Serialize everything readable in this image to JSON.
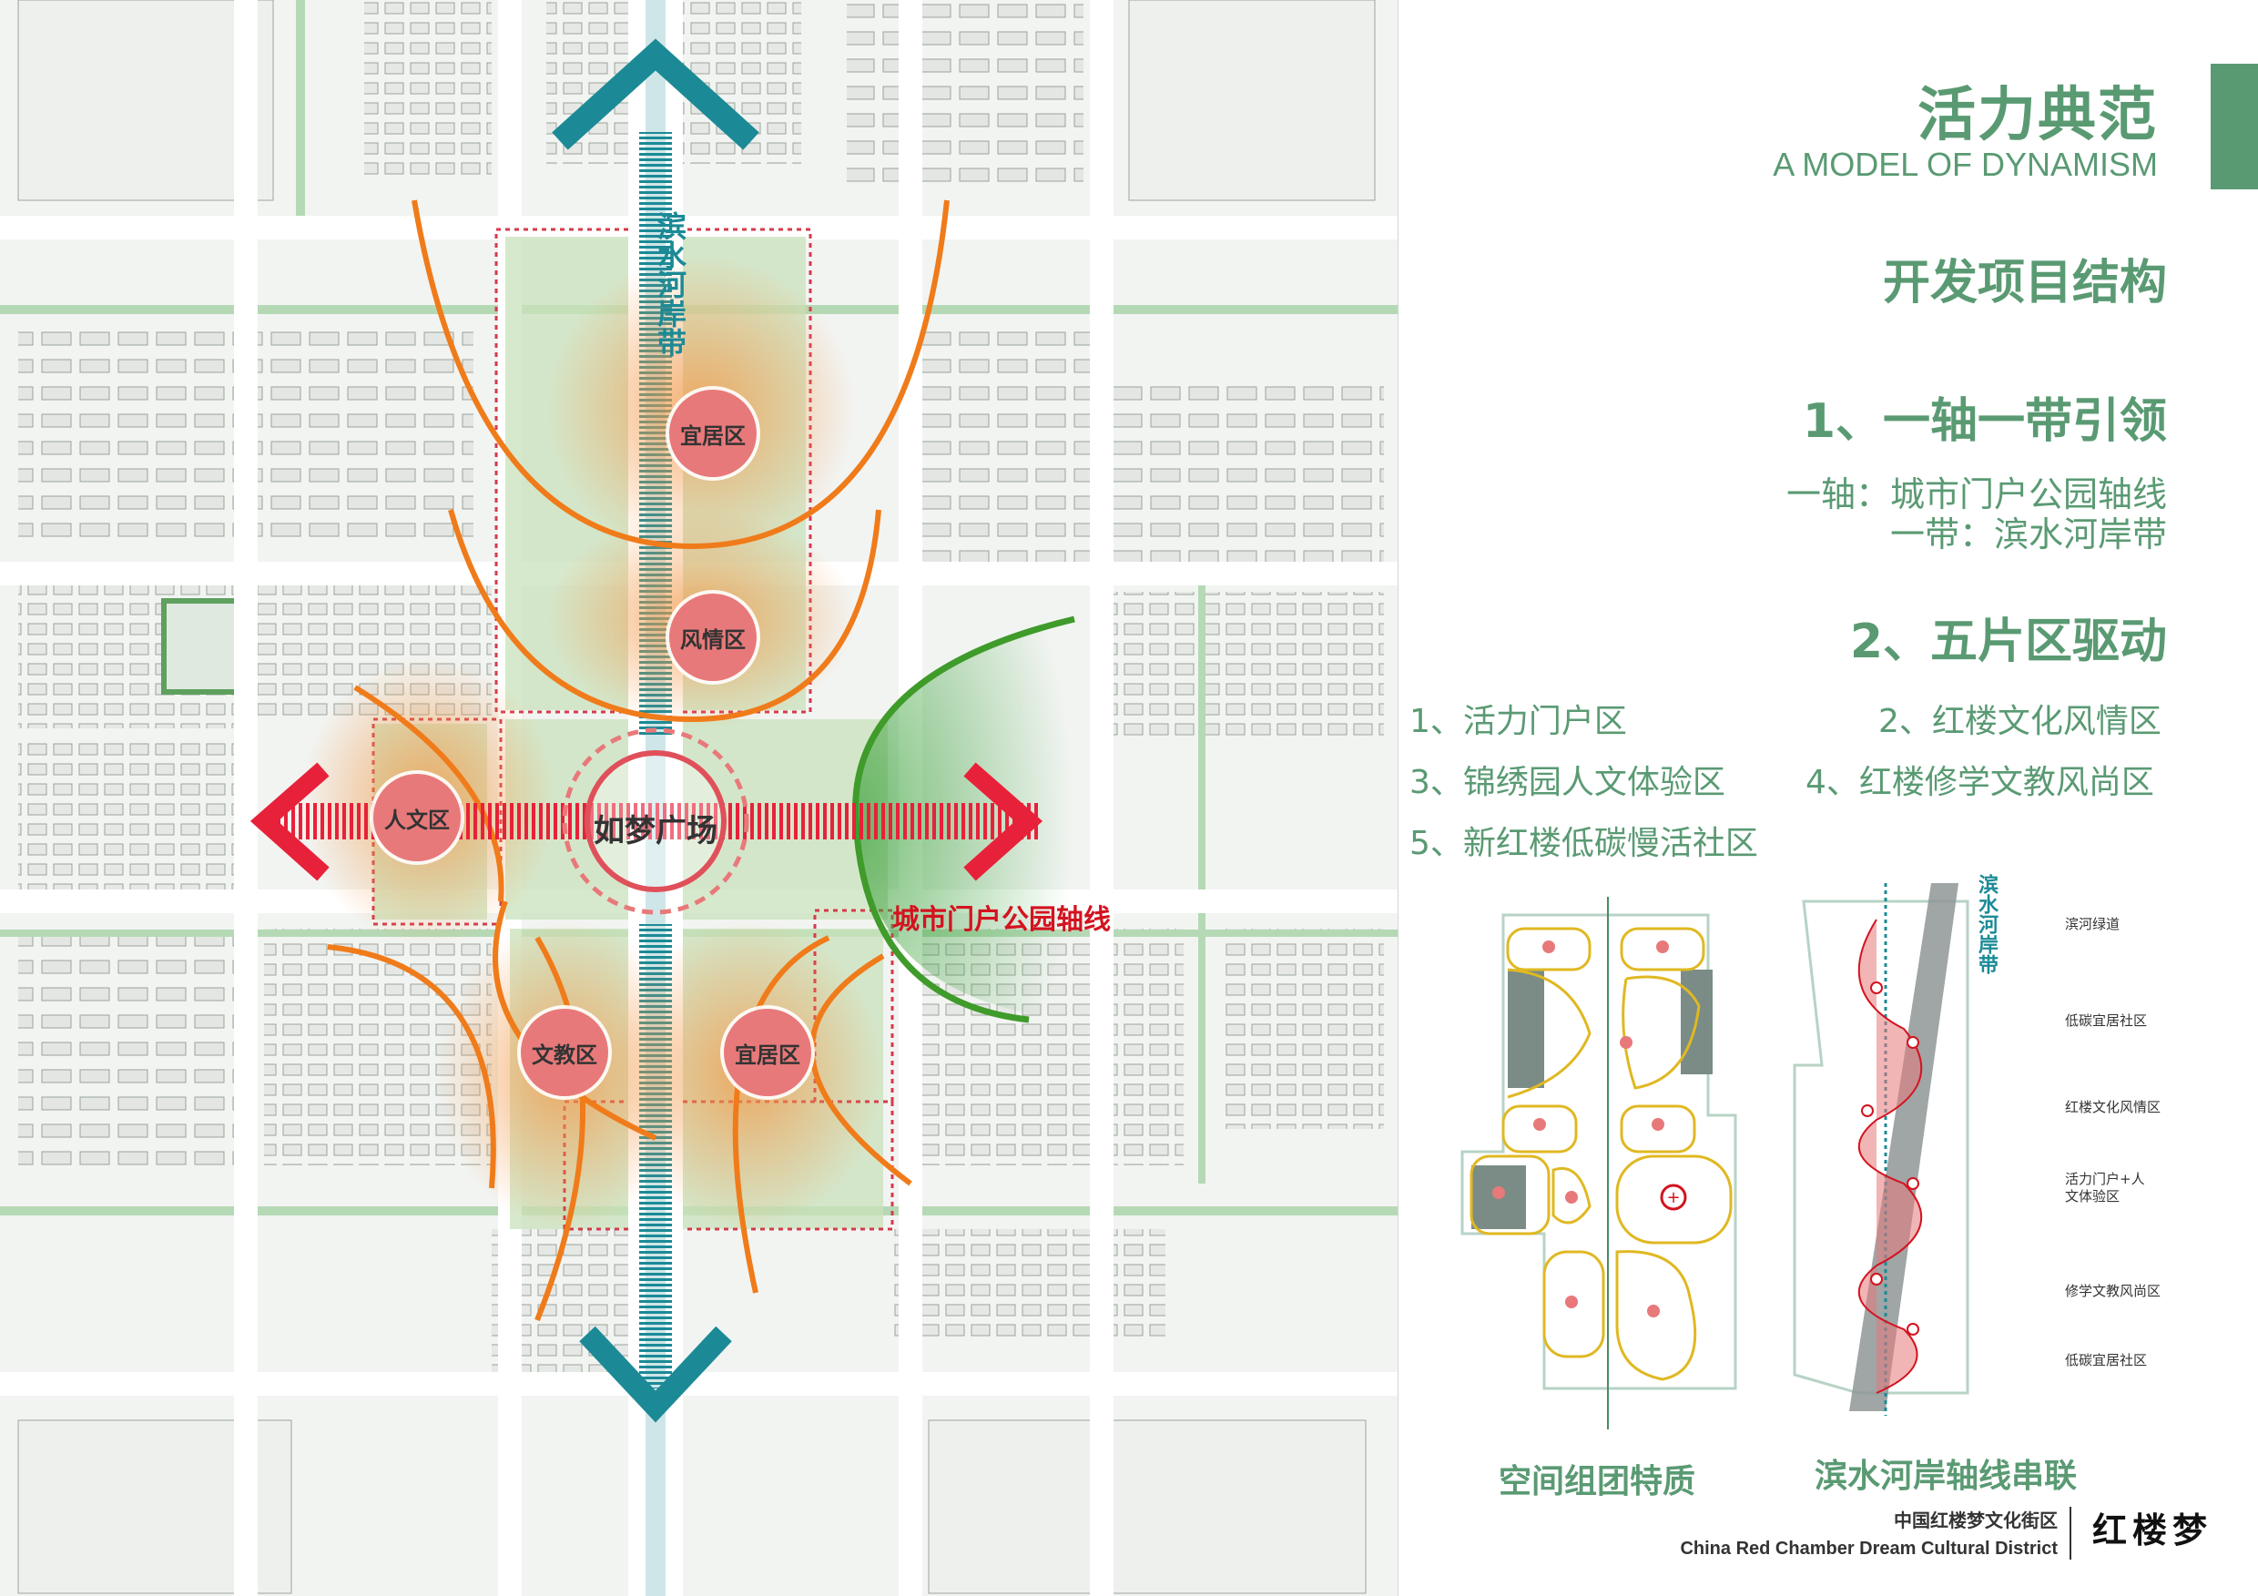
{
  "header": {
    "title_cn": "活力典范",
    "title_en": "A MODEL OF DYNAMISM",
    "subtitle": "开发项目结构"
  },
  "section1": {
    "title": "1、一轴一带引领",
    "line1": "一轴：城市门户公园轴线",
    "line2": "一带：滨水河岸带"
  },
  "section2": {
    "title": "2、五片区驱动",
    "districts": [
      "1、活力门户区",
      "2、红楼文化风情区",
      "3、锦绣园人文体验区",
      "4、红楼修学文教风尚区",
      "5、新红楼低碳慢活社区"
    ]
  },
  "map": {
    "plaza": "如梦广场",
    "river_belt": "滨水河岸带",
    "park_axis": "城市门户公园轴线",
    "zones": [
      "宜居区",
      "风情区",
      "人文区",
      "文教区",
      "宜居区"
    ]
  },
  "diagram_left": {
    "caption": "空间组团特质"
  },
  "diagram_right": {
    "caption": "滨水河岸轴线串联",
    "belt_label": "滨水河岸带",
    "legend": [
      "滨河绿道",
      "低碳宜居社区",
      "红楼文化风情区",
      "活力门户+人文体验区",
      "修学文教风尚区",
      "低碳宜居社区"
    ]
  },
  "footer": {
    "cn": "中国红楼梦文化街区",
    "en": "China Red Chamber Dream Cultural District",
    "brand": "红楼梦"
  },
  "colors": {
    "accent_green": "#5a9a73",
    "orange_arc": "#f07b1a",
    "axis_red": "#e8213a",
    "river_teal": "#1b8a96",
    "zone_pink": "#e8797a"
  }
}
